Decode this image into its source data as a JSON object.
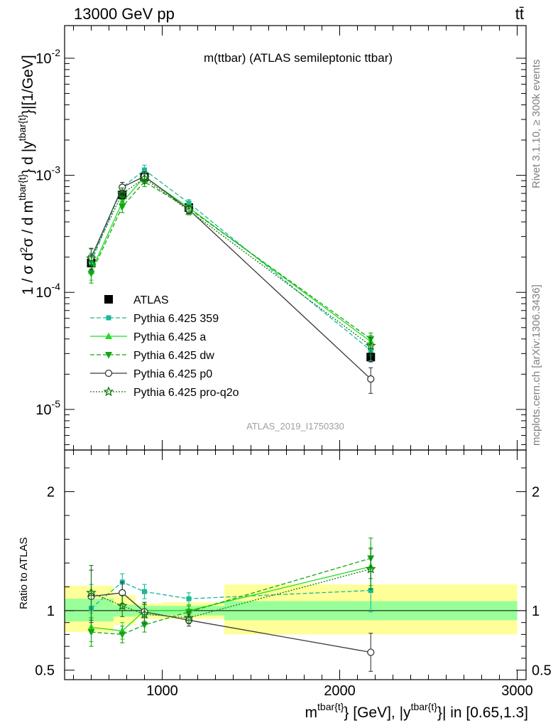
{
  "header": {
    "energy_label": "13000 GeV pp",
    "process_label": "tt̄"
  },
  "side_labels": {
    "rivet": "Rivet 3.1.10, ≥ 300k events",
    "mcplots": "mcplots.cern.ch [arXiv:1306.3436]"
  },
  "chart_data": [
    {
      "type": "line",
      "panel": "main",
      "title": "m(ttbar) (ATLAS semileptonic ttbar)",
      "watermark": "ATLAS_2019_I1750330",
      "ylabel": "1 / σ d²σ / d m^{tbar{t}} d |y^{tbar{t}}|[1/GeV]",
      "yscale": "log",
      "xlim": [
        450,
        3050
      ],
      "ylim": [
        4.5e-06,
        0.019
      ],
      "ytick_labels": [
        "10^-5",
        "10^-4",
        "10^-3",
        "10^-2"
      ],
      "x": [
        600,
        775,
        900,
        1150,
        2175
      ],
      "data_bins": [
        [
          450,
          725
        ],
        [
          725,
          850
        ],
        [
          850,
          1000
        ],
        [
          1000,
          1350
        ],
        [
          1350,
          3000
        ]
      ],
      "legend_position": "lower-left",
      "series": [
        {
          "name": "ATLAS",
          "color": "#000000",
          "marker": "filled-square",
          "linestyle": "none",
          "values": [
            0.000178,
            0.00068,
            0.00097,
            0.00053,
            2.8e-05
          ],
          "errors": [
            1.2e-05,
            4e-05,
            5e-05,
            3e-05,
            2.5e-06
          ]
        },
        {
          "name": "Pythia 6.425 359",
          "color": "#1ab896",
          "marker": "small-square",
          "linestyle": "dashed",
          "values": [
            0.000181,
            0.00079,
            0.00111,
            0.00058,
            3.2e-05
          ],
          "errors": [
            3.5e-05,
            8e-05,
            0.00011,
            4e-05,
            6e-06
          ]
        },
        {
          "name": "Pythia 6.425 a",
          "color": "#22dd22",
          "marker": "triangle-up",
          "linestyle": "solid",
          "values": [
            0.000152,
            0.00059,
            0.00097,
            0.00053,
            3.8e-05
          ],
          "errors": [
            2.5e-05,
            6e-05,
            8e-05,
            4e-05,
            5e-06
          ]
        },
        {
          "name": "Pythia 6.425 dw",
          "color": "#15a515",
          "marker": "triangle-down",
          "linestyle": "dashed",
          "values": [
            0.000145,
            0.00054,
            0.00088,
            0.00052,
            4e-05
          ],
          "errors": [
            2.5e-05,
            6e-05,
            8e-05,
            4e-05,
            5e-06
          ]
        },
        {
          "name": "Pythia 6.425 p0",
          "color": "#3a3a3a",
          "marker": "open-circle",
          "linestyle": "solid",
          "values": [
            0.000198,
            0.00079,
            0.00098,
            0.00051,
            1.82e-05
          ],
          "errors": [
            4e-05,
            8e-05,
            9e-05,
            4e-05,
            4.5e-06
          ]
        },
        {
          "name": "Pythia 6.425 pro-q2o",
          "color": "#117711",
          "marker": "open-star",
          "linestyle": "dotted",
          "values": [
            0.000195,
            0.0007,
            0.00094,
            0.0005,
            3.5e-05
          ],
          "errors": [
            4e-05,
            8e-05,
            9e-05,
            4e-05,
            6e-06
          ]
        }
      ]
    },
    {
      "type": "line",
      "panel": "ratio",
      "ylabel": "Ratio to ATLAS",
      "xlabel": "m^{tbar{t}} [GeV], |y^{tbar{t}}| in [0.65,1.3]",
      "xlim": [
        450,
        3050
      ],
      "ylim": [
        0.42,
        2.35
      ],
      "yticks": [
        0.5,
        1,
        2
      ],
      "ytick_labels": [
        "0.5",
        "1",
        "2"
      ],
      "xticks": [
        1000,
        2000,
        3000
      ],
      "xtick_labels": [
        "1000",
        "2000",
        "3000"
      ],
      "x": [
        600,
        775,
        900,
        1150,
        2175
      ],
      "bands": {
        "bins": [
          [
            450,
            725
          ],
          [
            725,
            850
          ],
          [
            850,
            1000
          ],
          [
            1000,
            1350
          ],
          [
            1350,
            3000
          ]
        ],
        "inner": [
          [
            0.91,
            1.1
          ],
          [
            0.95,
            1.05
          ],
          [
            0.96,
            1.04
          ],
          [
            0.96,
            1.04
          ],
          [
            0.92,
            1.08
          ]
        ],
        "outer": [
          [
            0.82,
            1.21
          ],
          [
            0.88,
            1.13
          ],
          [
            0.93,
            1.06
          ],
          [
            0.93,
            1.07
          ],
          [
            0.8,
            1.22
          ]
        ],
        "inner_color": "#99ff99",
        "outer_color": "#ffff99"
      },
      "series": [
        {
          "name": "Pythia 6.425 359",
          "color": "#1ab896",
          "marker": "small-square",
          "linestyle": "dashed",
          "values": [
            1.02,
            1.24,
            1.16,
            1.1,
            1.17
          ],
          "errors": [
            0.2,
            0.07,
            0.06,
            0.05,
            0.18
          ]
        },
        {
          "name": "Pythia 6.425 a",
          "color": "#22dd22",
          "marker": "triangle-up",
          "linestyle": "solid",
          "values": [
            0.86,
            0.83,
            1.0,
            1.0,
            1.37
          ],
          "errors": [
            0.12,
            0.07,
            0.06,
            0.05,
            0.16
          ]
        },
        {
          "name": "Pythia 6.425 dw",
          "color": "#15a515",
          "marker": "triangle-down",
          "linestyle": "dashed",
          "values": [
            0.82,
            0.8,
            0.88,
            0.99,
            1.44
          ],
          "errors": [
            0.12,
            0.07,
            0.06,
            0.05,
            0.17
          ]
        },
        {
          "name": "Pythia 6.425 p0",
          "color": "#3a3a3a",
          "marker": "open-circle",
          "linestyle": "solid",
          "values": [
            1.12,
            1.15,
            0.99,
            0.92,
            0.65
          ],
          "errors": [
            0.22,
            0.09,
            0.08,
            0.05,
            0.16
          ]
        },
        {
          "name": "Pythia 6.425 pro-q2o",
          "color": "#117711",
          "marker": "open-star",
          "linestyle": "dotted",
          "values": [
            1.15,
            1.04,
            0.97,
            0.94,
            1.35
          ],
          "errors": [
            0.23,
            0.09,
            0.08,
            0.05,
            0.17
          ]
        }
      ]
    }
  ]
}
